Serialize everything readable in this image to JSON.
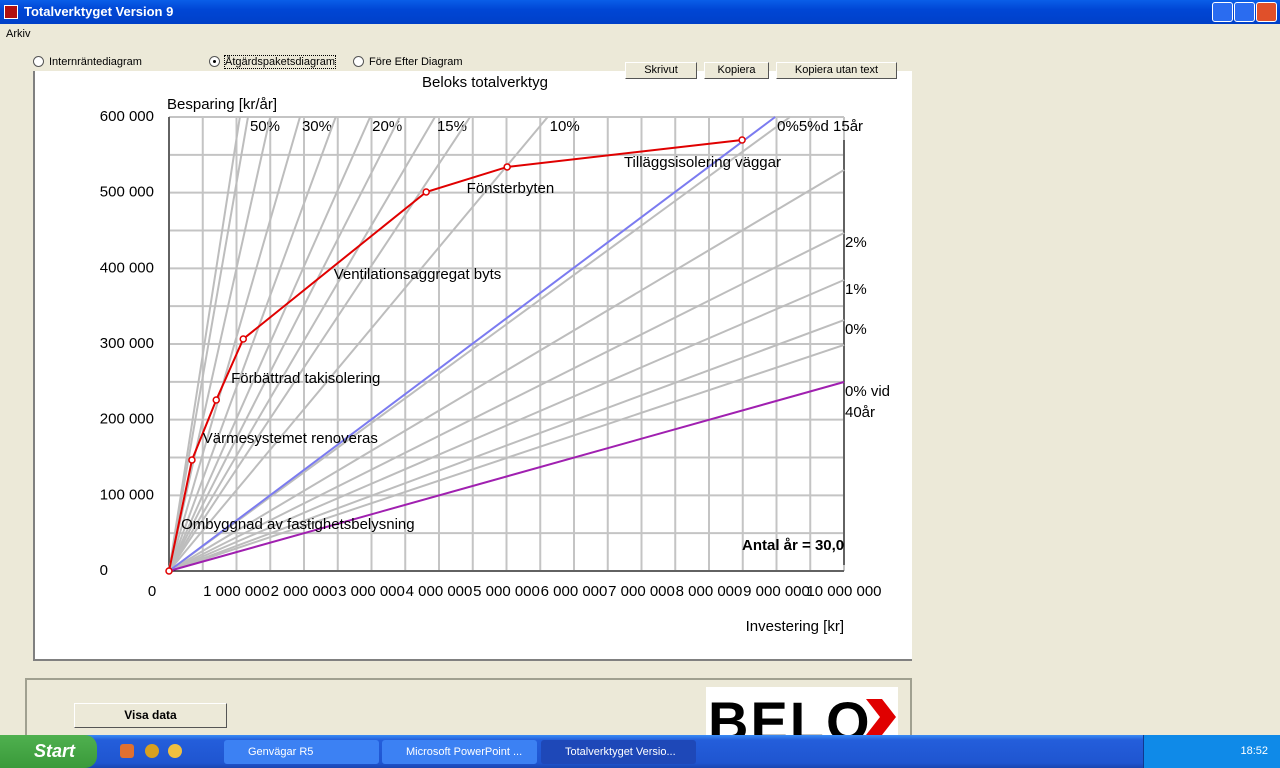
{
  "window": {
    "title": "Totalverktyget Version 9",
    "menu": [
      "Arkiv"
    ]
  },
  "diagram_options": [
    {
      "label": "Internräntediagram",
      "selected": false
    },
    {
      "label": "Åtgärdspaketsdiagram",
      "selected": true
    },
    {
      "label": "Före Efter Diagram",
      "selected": false
    }
  ],
  "buttons": [
    "Skrivut",
    "Kopiera",
    "Kopiera utan text"
  ],
  "chart_data": {
    "type": "line",
    "title": "Beloks totalverktyg",
    "y_label": "Besparing [kr/år]",
    "x_label": "Investering [kr]",
    "note": "Antal år = 30,0",
    "xlim": [
      0,
      10000000
    ],
    "ylim": [
      0,
      600000
    ],
    "grid": true,
    "xticks": [
      0,
      {
        "value": 1000000,
        "label": "1 000 000"
      },
      {
        "value": 2000000,
        "label": "2 000 000"
      },
      {
        "value": 3000000,
        "label": "3 000 000"
      },
      {
        "value": 4000000,
        "label": "4 000 000"
      },
      {
        "value": 5000000,
        "label": "5 000 000"
      },
      {
        "value": 6000000,
        "label": "6 000 000"
      },
      {
        "value": 7000000,
        "label": "7 000 000"
      },
      {
        "value": 8000000,
        "label": "8 000 000"
      },
      {
        "value": 9000000,
        "label": "9 000 000"
      },
      {
        "value": 10000000,
        "label": "10 000 000"
      }
    ],
    "yticks": [
      0,
      {
        "value": 100000,
        "label": "100 000"
      },
      {
        "value": 200000,
        "label": "200 000"
      },
      {
        "value": 300000,
        "label": "300 000"
      },
      {
        "value": 400000,
        "label": "400 000"
      },
      {
        "value": 500000,
        "label": "500 000"
      },
      {
        "value": 600000,
        "label": "600 000"
      }
    ],
    "x_minor_ticks": [
      500000,
      1500000,
      2500000,
      3500000,
      4500000,
      5500000,
      6500000,
      7500000,
      8500000,
      9500000
    ],
    "y_minor_ticks": [
      50000,
      150000,
      250000,
      350000,
      450000,
      550000
    ],
    "series": [
      {
        "name": null,
        "color": "#bdbdbd",
        "x": [
          0,
          1050000
        ],
        "values": [
          0,
          600000
        ]
      },
      {
        "name": "50%",
        "color": "#bdbdbd",
        "x": [
          0,
          1170000
        ],
        "values": [
          0,
          600000
        ]
      },
      {
        "name": null,
        "color": "#bdbdbd",
        "x": [
          0,
          1500000
        ],
        "values": [
          0,
          600000
        ]
      },
      {
        "name": "30%",
        "color": "#bdbdbd",
        "x": [
          0,
          1940000
        ],
        "values": [
          0,
          600000
        ]
      },
      {
        "name": null,
        "color": "#bdbdbd",
        "x": [
          0,
          2470000
        ],
        "values": [
          0,
          600000
        ]
      },
      {
        "name": "20%",
        "color": "#bdbdbd",
        "x": [
          0,
          2980000
        ],
        "values": [
          0,
          600000
        ]
      },
      {
        "name": null,
        "color": "#bdbdbd",
        "x": [
          0,
          3420000
        ],
        "values": [
          0,
          600000
        ]
      },
      {
        "name": "15%",
        "color": "#bdbdbd",
        "x": [
          0,
          3940000
        ],
        "values": [
          0,
          600000
        ]
      },
      {
        "name": null,
        "color": "#bdbdbd",
        "x": [
          0,
          4460000
        ],
        "values": [
          0,
          600000
        ]
      },
      {
        "name": "10%",
        "color": "#bdbdbd",
        "x": [
          0,
          5610000
        ],
        "values": [
          0,
          600000
        ]
      },
      {
        "name": null,
        "color": "#bdbdbd",
        "x": [
          0,
          9200000
        ],
        "values": [
          0,
          600000
        ]
      },
      {
        "name": null,
        "color": "#bdbdbd",
        "x": [
          0,
          10000000
        ],
        "values": [
          0,
          530000
        ]
      },
      {
        "name": "2%",
        "color": "#bdbdbd",
        "x": [
          0,
          10000000
        ],
        "values": [
          0,
          446700
        ]
      },
      {
        "name": "1%",
        "color": "#bdbdbd",
        "x": [
          0,
          10000000
        ],
        "values": [
          0,
          384600
        ]
      },
      {
        "name": "0%",
        "color": "#bdbdbd",
        "x": [
          0,
          10000000
        ],
        "values": [
          0,
          331700
        ]
      },
      {
        "name": null,
        "color": "#bdbdbd",
        "x": [
          0,
          10000000
        ],
        "values": [
          0,
          298700
        ]
      },
      {
        "name": [
          "0% vid",
          "40år"
        ],
        "color": "#a020b0",
        "x": [
          0,
          10000000
        ],
        "values": [
          0,
          249800
        ]
      },
      {
        "name": "0%5%d 15år",
        "color": "#7b7bf0",
        "x": [
          0,
          8980000
        ],
        "values": [
          0,
          600000
        ]
      },
      {
        "name": null,
        "color": "#e00000",
        "markers": true,
        "x": [
          0,
          340000,
          700000,
          1100000,
          3810000,
          5010000,
          8490000
        ],
        "values": [
          0,
          146700,
          226000,
          306600,
          500900,
          534000,
          569600
        ]
      }
    ],
    "annotations": [
      {
        "text": "Ombyggnad av fastighetsbelysning",
        "x": 180000,
        "y": 60800
      },
      {
        "text": "Värmesystemet renoveras",
        "x": 500000,
        "y": 174400
      },
      {
        "text": "Förbättrad takisolering",
        "x": 920000,
        "y": 253700
      },
      {
        "text": "Ventilationsaggregat byts",
        "x": 2440000,
        "y": 391000
      },
      {
        "text": "Fönsterbyten",
        "x": 4410000,
        "y": 504800
      },
      {
        "text": "Tilläggsisolering väggar",
        "x": 6740000,
        "y": 539000
      }
    ]
  },
  "lower_panel": {
    "button": "Visa data",
    "logo": "BELO"
  },
  "taskbar": {
    "start": "Start",
    "tasks": [
      "Genvägar R5",
      "Microsoft PowerPoint ...",
      "Totalverktyget Versio..."
    ],
    "active_task": 2,
    "clock": "18:52"
  }
}
